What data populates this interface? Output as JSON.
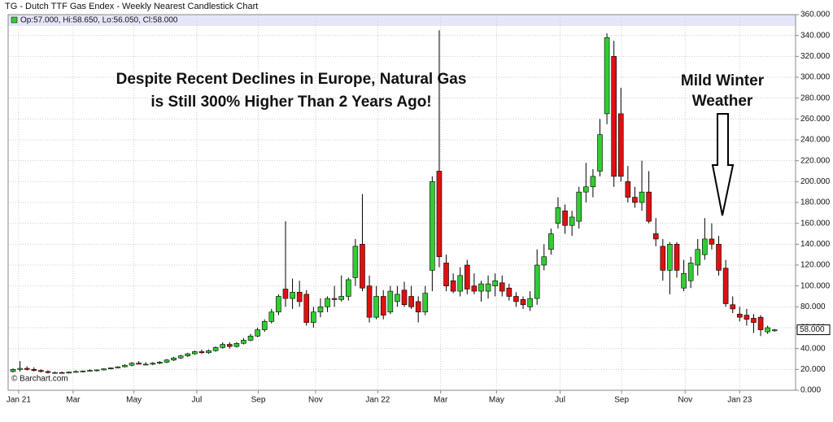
{
  "chart_data": {
    "type": "candlestick",
    "title": "TG - Dutch TTF Gas Endex - Weekly Nearest Candlestick Chart",
    "legend": "Op:57.000, Hi:58.650, Lo:56.050, Cl:58.000",
    "credit": "© Barchart.com",
    "annotations": [
      {
        "lines": [
          "Despite Recent Declines in Europe, Natural Gas",
          "is Still 300% Higher Than 2 Years Ago!"
        ]
      },
      {
        "lines": [
          "Mild Winter",
          "Weather"
        ]
      }
    ],
    "up_color": "#33cc33",
    "down_color": "#dd1111",
    "grid": true,
    "last_price": {
      "value": 58,
      "label": "58.000"
    },
    "x": [
      0,
      1,
      2,
      3,
      4,
      5,
      6,
      7,
      8,
      9,
      10,
      11,
      12,
      13,
      14,
      15,
      16,
      17,
      18,
      19,
      20,
      21,
      22,
      23,
      24,
      25,
      26,
      27,
      28,
      29,
      30,
      31,
      32,
      33,
      34,
      35,
      36,
      37,
      38,
      39,
      40,
      41,
      42,
      43,
      44,
      45,
      46,
      47,
      48,
      49,
      50,
      51,
      52,
      53,
      54,
      55,
      56,
      57,
      58,
      59,
      60,
      61,
      62,
      63,
      64,
      65,
      66,
      67,
      68,
      69,
      70,
      71,
      72,
      73,
      74,
      75,
      76,
      77,
      78,
      79,
      80,
      81,
      82,
      83,
      84,
      85,
      86,
      87,
      88,
      89,
      90,
      91,
      92,
      93,
      94,
      95,
      96,
      97,
      98,
      99,
      100,
      101,
      102,
      103,
      104,
      105,
      106,
      107,
      108,
      109
    ],
    "open": [
      18,
      20,
      21,
      20,
      19,
      18,
      17,
      17,
      16.5,
      17.5,
      18,
      18.5,
      19,
      19.5,
      20.5,
      21.5,
      22.5,
      24,
      26,
      25,
      25,
      26,
      27,
      29,
      31,
      33,
      35,
      37,
      36,
      38,
      41,
      44,
      42,
      45,
      48,
      52,
      58,
      66,
      75,
      97,
      88,
      94,
      92,
      65,
      75,
      80,
      88,
      87,
      90,
      108,
      140,
      100,
      70,
      90,
      75,
      85,
      96,
      90,
      85,
      75,
      115,
      210,
      122,
      105,
      95,
      120,
      100,
      95,
      95,
      100,
      103,
      98,
      90,
      87,
      80,
      88,
      120,
      135,
      160,
      172,
      158,
      162,
      190,
      195,
      210,
      265,
      320,
      265,
      200,
      185,
      180,
      190,
      150,
      138,
      115,
      140,
      98,
      105,
      120,
      130,
      145,
      140,
      117,
      82,
      73,
      72,
      69,
      70,
      56,
      57
    ],
    "high": [
      21,
      28,
      23,
      22,
      20,
      19,
      18,
      18,
      18,
      19,
      19,
      20,
      20,
      21,
      22,
      23,
      25,
      27,
      28,
      27,
      27,
      28,
      30,
      32,
      34,
      36,
      38,
      39,
      39,
      42,
      46,
      46,
      46,
      50,
      54,
      60,
      68,
      78,
      92,
      162,
      107,
      105,
      96,
      80,
      88,
      90,
      100,
      110,
      108,
      145,
      188,
      110,
      100,
      96,
      100,
      100,
      104,
      100,
      90,
      100,
      205,
      345,
      130,
      112,
      118,
      125,
      112,
      105,
      110,
      112,
      110,
      102,
      94,
      90,
      95,
      135,
      140,
      155,
      185,
      178,
      172,
      195,
      218,
      212,
      260,
      342,
      335,
      290,
      215,
      195,
      220,
      210,
      165,
      145,
      142,
      142,
      125,
      128,
      145,
      165,
      160,
      148,
      125,
      90,
      80,
      78,
      73,
      72,
      62,
      58.65
    ],
    "low": [
      17,
      18,
      19,
      18,
      17,
      16,
      16,
      16,
      16,
      17,
      17,
      18,
      18,
      19,
      20,
      21,
      22,
      23,
      25,
      24,
      24,
      25,
      26,
      28,
      30,
      32,
      34,
      35,
      35,
      37,
      40,
      40,
      41,
      44,
      47,
      51,
      56,
      64,
      72,
      80,
      78,
      80,
      62,
      60,
      70,
      75,
      80,
      85,
      86,
      100,
      95,
      65,
      68,
      68,
      73,
      80,
      80,
      78,
      65,
      72,
      95,
      118,
      95,
      93,
      90,
      92,
      92,
      85,
      88,
      90,
      90,
      86,
      80,
      78,
      76,
      82,
      115,
      130,
      155,
      150,
      148,
      155,
      180,
      185,
      205,
      255,
      195,
      200,
      180,
      175,
      172,
      160,
      138,
      105,
      92,
      108,
      95,
      98,
      110,
      125,
      135,
      110,
      80,
      74,
      66,
      62,
      55,
      52,
      54,
      56.05
    ],
    "close": [
      20,
      21,
      20,
      19,
      18,
      17,
      17,
      16.5,
      17.5,
      18,
      18.5,
      19,
      19.5,
      20.5,
      21.5,
      22.5,
      24,
      26,
      25,
      25,
      26,
      27,
      29,
      31,
      33,
      35,
      37,
      36,
      38,
      41,
      44,
      42,
      45,
      48,
      52,
      58,
      66,
      75,
      90,
      88,
      94,
      85,
      65,
      75,
      80,
      88,
      87,
      90,
      106,
      138,
      98,
      70,
      90,
      72,
      95,
      92,
      82,
      80,
      75,
      93,
      200,
      128,
      100,
      95,
      110,
      97,
      95,
      102,
      102,
      105,
      95,
      90,
      85,
      82,
      88,
      120,
      128,
      150,
      175,
      158,
      166,
      190,
      195,
      205,
      245,
      338,
      205,
      205,
      185,
      180,
      190,
      162,
      145,
      115,
      140,
      115,
      112,
      122,
      135,
      145,
      140,
      115,
      83,
      78,
      70,
      68,
      65,
      58,
      60,
      58
    ],
    "xlim": [
      -0.7,
      112
    ],
    "xticks": [
      {
        "value": 0.8,
        "label": "Jan 21"
      },
      {
        "value": 8.6,
        "label": "Mar"
      },
      {
        "value": 17.3,
        "label": "May"
      },
      {
        "value": 26.3,
        "label": "Jul"
      },
      {
        "value": 35.1,
        "label": "Sep"
      },
      {
        "value": 43.3,
        "label": "Nov"
      },
      {
        "value": 52.2,
        "label": "Jan 22"
      },
      {
        "value": 61.2,
        "label": "Mar"
      },
      {
        "value": 69.2,
        "label": "May"
      },
      {
        "value": 78.3,
        "label": "Jul"
      },
      {
        "value": 87.1,
        "label": "Sep"
      },
      {
        "value": 96.2,
        "label": "Nov"
      },
      {
        "value": 104,
        "label": "Jan 23"
      }
    ],
    "ylim": [
      0,
      360
    ],
    "yticks": [
      {
        "value": 0,
        "label": "0.000"
      },
      {
        "value": 20,
        "label": "20.000"
      },
      {
        "value": 40,
        "label": "40.000"
      },
      {
        "value": 60,
        "label": "60.000"
      },
      {
        "value": 80,
        "label": "80.000"
      },
      {
        "value": 100,
        "label": "100.000"
      },
      {
        "value": 120,
        "label": "120.000"
      },
      {
        "value": 140,
        "label": "140.000"
      },
      {
        "value": 160,
        "label": "160.000"
      },
      {
        "value": 180,
        "label": "180.000"
      },
      {
        "value": 200,
        "label": "200.000"
      },
      {
        "value": 220,
        "label": "220.000"
      },
      {
        "value": 240,
        "label": "240.000"
      },
      {
        "value": 260,
        "label": "260.000"
      },
      {
        "value": 280,
        "label": "280.000"
      },
      {
        "value": 300,
        "label": "300.000"
      },
      {
        "value": 320,
        "label": "320.000"
      },
      {
        "value": 340,
        "label": "340.000"
      },
      {
        "value": 360,
        "label": "360.000"
      }
    ]
  }
}
